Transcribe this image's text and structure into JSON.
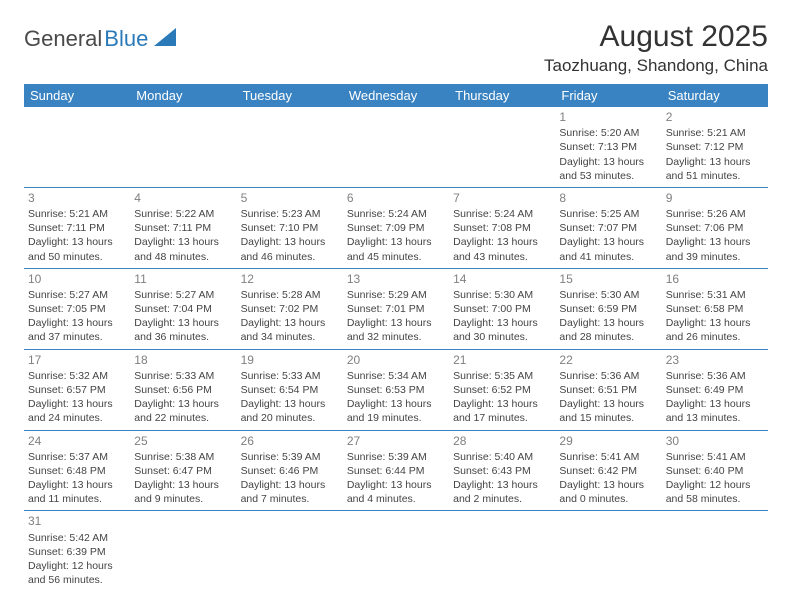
{
  "logo": {
    "part1": "General",
    "part2": "Blue"
  },
  "title": "August 2025",
  "location": "Taozhuang, Shandong, China",
  "colors": {
    "header_bg": "#3a83c2",
    "header_text": "#ffffff",
    "border": "#3a83c2",
    "daynum": "#808080",
    "body_text": "#444444",
    "logo_dark": "#4a4a4a",
    "logo_blue": "#2a7ab9"
  },
  "weekdays": [
    "Sunday",
    "Monday",
    "Tuesday",
    "Wednesday",
    "Thursday",
    "Friday",
    "Saturday"
  ],
  "cells": [
    [
      null,
      null,
      null,
      null,
      null,
      {
        "d": "1",
        "sr": "Sunrise: 5:20 AM",
        "ss": "Sunset: 7:13 PM",
        "dl": "Daylight: 13 hours and 53 minutes."
      },
      {
        "d": "2",
        "sr": "Sunrise: 5:21 AM",
        "ss": "Sunset: 7:12 PM",
        "dl": "Daylight: 13 hours and 51 minutes."
      }
    ],
    [
      {
        "d": "3",
        "sr": "Sunrise: 5:21 AM",
        "ss": "Sunset: 7:11 PM",
        "dl": "Daylight: 13 hours and 50 minutes."
      },
      {
        "d": "4",
        "sr": "Sunrise: 5:22 AM",
        "ss": "Sunset: 7:11 PM",
        "dl": "Daylight: 13 hours and 48 minutes."
      },
      {
        "d": "5",
        "sr": "Sunrise: 5:23 AM",
        "ss": "Sunset: 7:10 PM",
        "dl": "Daylight: 13 hours and 46 minutes."
      },
      {
        "d": "6",
        "sr": "Sunrise: 5:24 AM",
        "ss": "Sunset: 7:09 PM",
        "dl": "Daylight: 13 hours and 45 minutes."
      },
      {
        "d": "7",
        "sr": "Sunrise: 5:24 AM",
        "ss": "Sunset: 7:08 PM",
        "dl": "Daylight: 13 hours and 43 minutes."
      },
      {
        "d": "8",
        "sr": "Sunrise: 5:25 AM",
        "ss": "Sunset: 7:07 PM",
        "dl": "Daylight: 13 hours and 41 minutes."
      },
      {
        "d": "9",
        "sr": "Sunrise: 5:26 AM",
        "ss": "Sunset: 7:06 PM",
        "dl": "Daylight: 13 hours and 39 minutes."
      }
    ],
    [
      {
        "d": "10",
        "sr": "Sunrise: 5:27 AM",
        "ss": "Sunset: 7:05 PM",
        "dl": "Daylight: 13 hours and 37 minutes."
      },
      {
        "d": "11",
        "sr": "Sunrise: 5:27 AM",
        "ss": "Sunset: 7:04 PM",
        "dl": "Daylight: 13 hours and 36 minutes."
      },
      {
        "d": "12",
        "sr": "Sunrise: 5:28 AM",
        "ss": "Sunset: 7:02 PM",
        "dl": "Daylight: 13 hours and 34 minutes."
      },
      {
        "d": "13",
        "sr": "Sunrise: 5:29 AM",
        "ss": "Sunset: 7:01 PM",
        "dl": "Daylight: 13 hours and 32 minutes."
      },
      {
        "d": "14",
        "sr": "Sunrise: 5:30 AM",
        "ss": "Sunset: 7:00 PM",
        "dl": "Daylight: 13 hours and 30 minutes."
      },
      {
        "d": "15",
        "sr": "Sunrise: 5:30 AM",
        "ss": "Sunset: 6:59 PM",
        "dl": "Daylight: 13 hours and 28 minutes."
      },
      {
        "d": "16",
        "sr": "Sunrise: 5:31 AM",
        "ss": "Sunset: 6:58 PM",
        "dl": "Daylight: 13 hours and 26 minutes."
      }
    ],
    [
      {
        "d": "17",
        "sr": "Sunrise: 5:32 AM",
        "ss": "Sunset: 6:57 PM",
        "dl": "Daylight: 13 hours and 24 minutes."
      },
      {
        "d": "18",
        "sr": "Sunrise: 5:33 AM",
        "ss": "Sunset: 6:56 PM",
        "dl": "Daylight: 13 hours and 22 minutes."
      },
      {
        "d": "19",
        "sr": "Sunrise: 5:33 AM",
        "ss": "Sunset: 6:54 PM",
        "dl": "Daylight: 13 hours and 20 minutes."
      },
      {
        "d": "20",
        "sr": "Sunrise: 5:34 AM",
        "ss": "Sunset: 6:53 PM",
        "dl": "Daylight: 13 hours and 19 minutes."
      },
      {
        "d": "21",
        "sr": "Sunrise: 5:35 AM",
        "ss": "Sunset: 6:52 PM",
        "dl": "Daylight: 13 hours and 17 minutes."
      },
      {
        "d": "22",
        "sr": "Sunrise: 5:36 AM",
        "ss": "Sunset: 6:51 PM",
        "dl": "Daylight: 13 hours and 15 minutes."
      },
      {
        "d": "23",
        "sr": "Sunrise: 5:36 AM",
        "ss": "Sunset: 6:49 PM",
        "dl": "Daylight: 13 hours and 13 minutes."
      }
    ],
    [
      {
        "d": "24",
        "sr": "Sunrise: 5:37 AM",
        "ss": "Sunset: 6:48 PM",
        "dl": "Daylight: 13 hours and 11 minutes."
      },
      {
        "d": "25",
        "sr": "Sunrise: 5:38 AM",
        "ss": "Sunset: 6:47 PM",
        "dl": "Daylight: 13 hours and 9 minutes."
      },
      {
        "d": "26",
        "sr": "Sunrise: 5:39 AM",
        "ss": "Sunset: 6:46 PM",
        "dl": "Daylight: 13 hours and 7 minutes."
      },
      {
        "d": "27",
        "sr": "Sunrise: 5:39 AM",
        "ss": "Sunset: 6:44 PM",
        "dl": "Daylight: 13 hours and 4 minutes."
      },
      {
        "d": "28",
        "sr": "Sunrise: 5:40 AM",
        "ss": "Sunset: 6:43 PM",
        "dl": "Daylight: 13 hours and 2 minutes."
      },
      {
        "d": "29",
        "sr": "Sunrise: 5:41 AM",
        "ss": "Sunset: 6:42 PM",
        "dl": "Daylight: 13 hours and 0 minutes."
      },
      {
        "d": "30",
        "sr": "Sunrise: 5:41 AM",
        "ss": "Sunset: 6:40 PM",
        "dl": "Daylight: 12 hours and 58 minutes."
      }
    ],
    [
      {
        "d": "31",
        "sr": "Sunrise: 5:42 AM",
        "ss": "Sunset: 6:39 PM",
        "dl": "Daylight: 12 hours and 56 minutes."
      },
      null,
      null,
      null,
      null,
      null,
      null
    ]
  ]
}
